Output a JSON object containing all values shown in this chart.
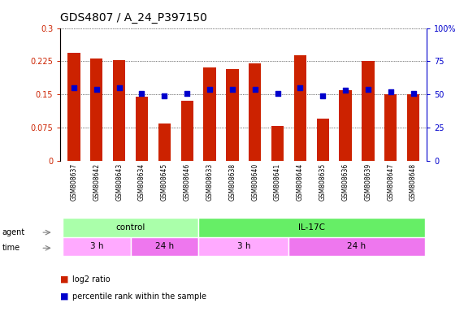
{
  "title": "GDS4807 / A_24_P397150",
  "samples": [
    "GSM808637",
    "GSM808642",
    "GSM808643",
    "GSM808634",
    "GSM808645",
    "GSM808646",
    "GSM808633",
    "GSM808638",
    "GSM808640",
    "GSM808641",
    "GSM808644",
    "GSM808635",
    "GSM808636",
    "GSM808639",
    "GSM808647",
    "GSM808648"
  ],
  "log2_ratio": [
    0.245,
    0.232,
    0.228,
    0.145,
    0.085,
    0.135,
    0.212,
    0.207,
    0.22,
    0.079,
    0.238,
    0.095,
    0.16,
    0.225,
    0.15,
    0.15
  ],
  "percentile": [
    55,
    54,
    55,
    51,
    49,
    51,
    54,
    54,
    54,
    51,
    55,
    49,
    53,
    54,
    52,
    51
  ],
  "bar_color": "#cc2200",
  "dot_color": "#0000cc",
  "ylim_left": [
    0,
    0.3
  ],
  "ylim_right": [
    0,
    100
  ],
  "yticks_left": [
    0,
    0.075,
    0.15,
    0.225,
    0.3
  ],
  "yticks_right": [
    0,
    25,
    50,
    75,
    100
  ],
  "agent_groups": [
    {
      "label": "control",
      "start": 0,
      "end": 5,
      "color": "#aaffaa"
    },
    {
      "label": "IL-17C",
      "start": 6,
      "end": 15,
      "color": "#66ee66"
    }
  ],
  "time_groups": [
    {
      "label": "3 h",
      "start": 0,
      "end": 2,
      "color": "#ffaaff"
    },
    {
      "label": "24 h",
      "start": 3,
      "end": 5,
      "color": "#ee77ee"
    },
    {
      "label": "3 h",
      "start": 6,
      "end": 9,
      "color": "#ffaaff"
    },
    {
      "label": "24 h",
      "start": 10,
      "end": 15,
      "color": "#ee77ee"
    }
  ],
  "background_color": "#ffffff",
  "grid_color": "#000000",
  "tick_label_fontsize": 7,
  "title_fontsize": 10,
  "xlabels_bg": "#cccccc",
  "agent_label": "agent",
  "time_label": "time",
  "legend_items": [
    {
      "color": "#cc2200",
      "label": "log2 ratio"
    },
    {
      "color": "#0000cc",
      "label": "percentile rank within the sample"
    }
  ]
}
